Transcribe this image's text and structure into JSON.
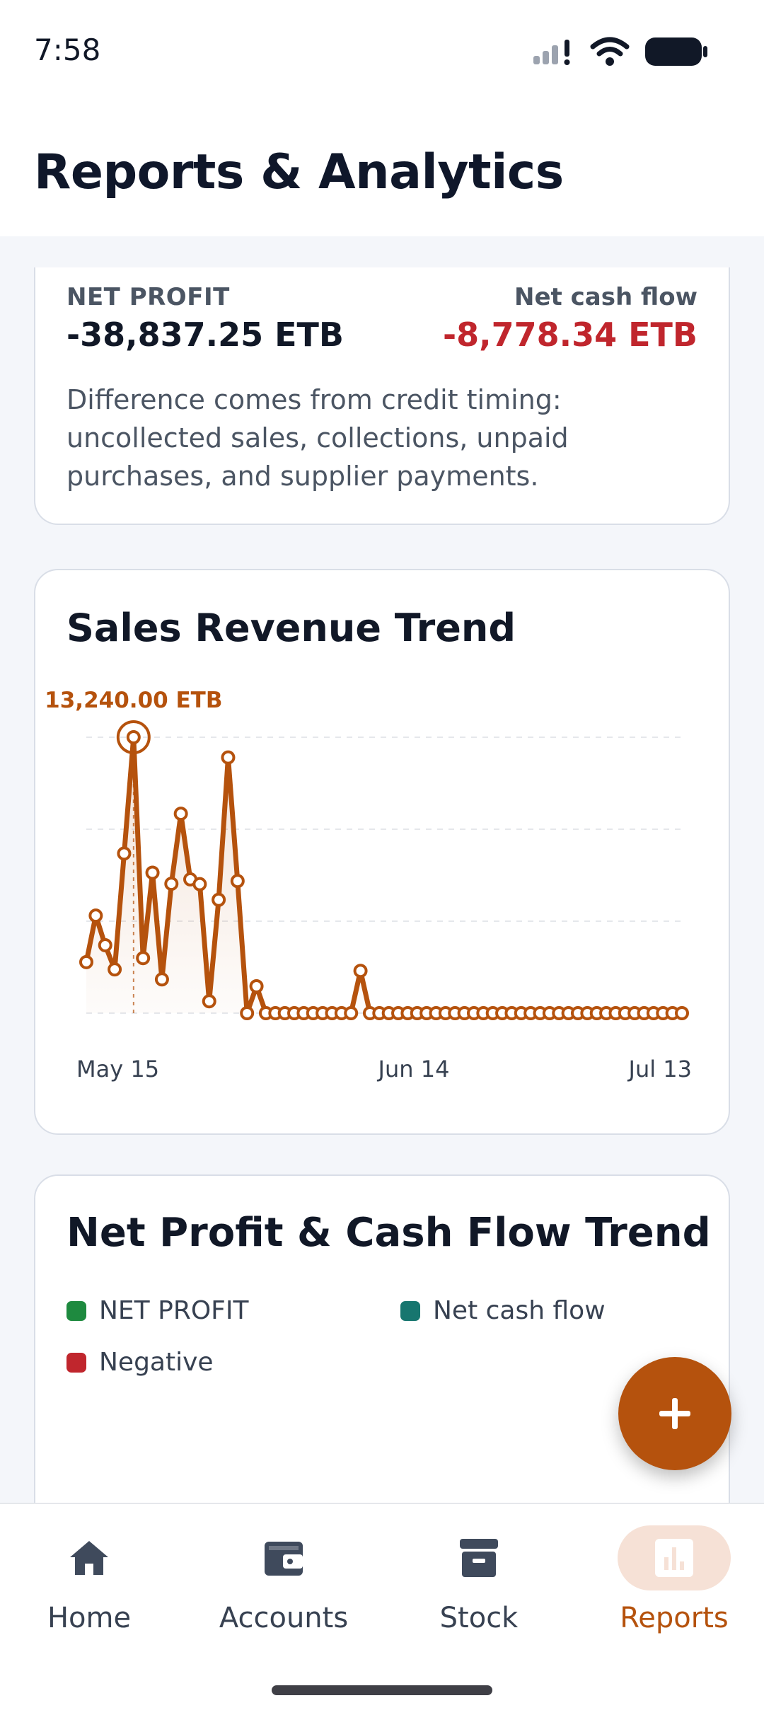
{
  "status_bar": {
    "time": "7:58"
  },
  "header": {
    "title": "Reports & Analytics"
  },
  "summary": {
    "net_profit_label": "NET PROFIT",
    "net_profit_value": "-38,837.25 ETB",
    "net_cash_flow_label": "Net cash flow",
    "net_cash_flow_value": "-8,778.34 ETB",
    "note": "Difference comes from credit timing: uncollected sales, collections, unpaid purchases, and supplier payments."
  },
  "sales_chart": {
    "title": "Sales Revenue Trend",
    "highlight_label": "13,240.00 ETB"
  },
  "chart_data": {
    "type": "line",
    "title": "Sales Revenue Trend",
    "x_tick_labels": [
      "May 15",
      "Jun 14",
      "Jul 13"
    ],
    "x_start": "May 11",
    "x_end": "Jul 13",
    "highlight": {
      "x": "May 16",
      "y": 13240,
      "label": "13,240.00 ETB"
    },
    "ylim": [
      0,
      13240
    ],
    "grid": true,
    "values": [
      2450,
      4680,
      3260,
      2100,
      7660,
      13240,
      2640,
      6740,
      1620,
      6210,
      9570,
      6420,
      6190,
      570,
      5440,
      12270,
      6340,
      0,
      1290,
      0,
      0,
      0,
      0,
      0,
      0,
      0,
      0,
      0,
      0,
      2030,
      0,
      0,
      0,
      0,
      0,
      0,
      0,
      0,
      0,
      0,
      0,
      0,
      0,
      0,
      0,
      0,
      0,
      0,
      0,
      0,
      0,
      0,
      0,
      0,
      0,
      0,
      0,
      0,
      0,
      0,
      0,
      0,
      0,
      0
    ],
    "color": "#b5520d"
  },
  "trend_card": {
    "title": "Net Profit & Cash Flow Trend",
    "legend": [
      {
        "label": "NET PROFIT",
        "color": "#1e8a3f"
      },
      {
        "label": "Net cash flow",
        "color": "#17766f"
      },
      {
        "label": "Negative",
        "color": "#c0262d"
      }
    ]
  },
  "fab": {
    "icon": "plus-icon"
  },
  "bottom_nav": {
    "items": [
      {
        "label": "Home",
        "icon": "home-icon"
      },
      {
        "label": "Accounts",
        "icon": "wallet-icon"
      },
      {
        "label": "Stock",
        "icon": "archive-box-icon"
      },
      {
        "label": "Reports",
        "icon": "bar-chart-icon",
        "active": true
      }
    ]
  },
  "colors": {
    "accent": "#b5520d",
    "negative": "#c0262d",
    "text_primary": "#111827",
    "text_secondary": "#4b5563"
  }
}
